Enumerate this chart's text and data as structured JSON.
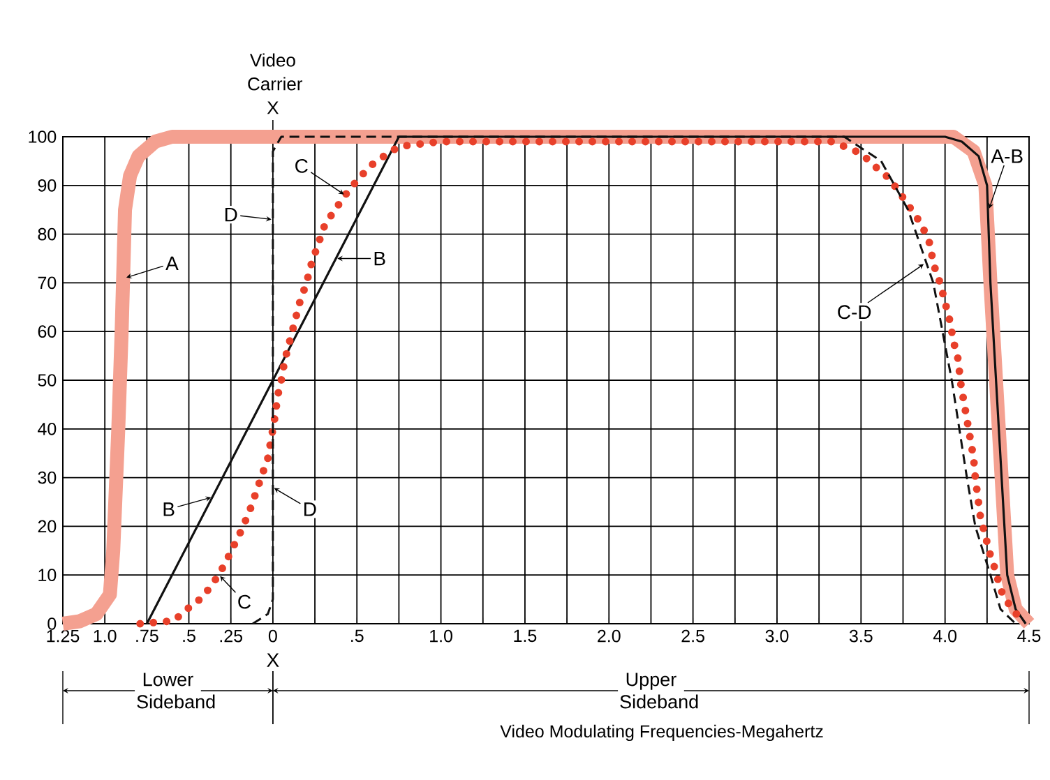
{
  "chart_data": {
    "type": "line",
    "xlabel": "Video Modulating Frequencies-Megahertz",
    "xlim": [
      -1.25,
      4.5
    ],
    "ylim": [
      0,
      100
    ],
    "xticks": [
      {
        "value": -1.25,
        "label": "1.25"
      },
      {
        "value": -1.0,
        "label": "1.0"
      },
      {
        "value": -0.75,
        "label": ".75"
      },
      {
        "value": -0.5,
        "label": ".5"
      },
      {
        "value": -0.25,
        "label": ".25"
      },
      0,
      {
        "value": 0.25,
        "label": null
      },
      {
        "value": 0.5,
        "label": ".5"
      },
      {
        "value": 0.75,
        "label": null
      },
      {
        "value": 1.0,
        "label": "1.0"
      },
      {
        "value": 1.25,
        "label": null
      },
      {
        "value": 1.5,
        "label": "1.5"
      },
      {
        "value": 1.75,
        "label": null
      },
      {
        "value": 2.0,
        "label": "2.0"
      },
      {
        "value": 2.25,
        "label": null
      },
      {
        "value": 2.5,
        "label": "2.5"
      },
      {
        "value": 2.75,
        "label": null
      },
      {
        "value": 3.0,
        "label": "3.0"
      },
      {
        "value": 3.25,
        "label": null
      },
      {
        "value": 3.5,
        "label": "3.5"
      },
      {
        "value": 3.75,
        "label": null
      },
      {
        "value": 4.0,
        "label": "4.0"
      },
      {
        "value": 4.25,
        "label": null
      },
      {
        "value": 4.5,
        "label": "4.5"
      }
    ],
    "yticks": [
      0,
      10,
      20,
      30,
      40,
      50,
      60,
      70,
      80,
      90,
      100
    ],
    "grid": true,
    "series": [
      {
        "color": "#f4a090",
        "line_style": "solid",
        "x": [
          -1.25,
          -1.15,
          -1.05,
          -0.97,
          -0.95,
          -0.92,
          -0.9,
          -0.88,
          -0.85,
          -0.8,
          -0.7,
          -0.6,
          4.05,
          4.17,
          4.24,
          4.27,
          4.32,
          4.37,
          4.42,
          4.5
        ],
        "values": [
          0,
          0.5,
          2,
          6,
          15,
          40,
          60,
          85,
          92,
          96,
          99,
          100,
          100,
          97,
          90,
          70,
          40,
          10,
          3,
          0
        ]
      },
      {
        "color": "#111111",
        "line_style": "solid",
        "x": [
          -0.75,
          0.75,
          4.0,
          4.1,
          4.2,
          4.25,
          4.27,
          4.32,
          4.37,
          4.42,
          4.48
        ],
        "values": [
          0,
          100,
          100,
          99,
          96,
          90,
          70,
          40,
          10,
          3,
          0
        ]
      },
      {
        "color": "#e8402a",
        "line_style": "dotted",
        "x": [
          -0.79,
          -0.59,
          -0.51,
          -0.42,
          -0.35,
          -0.29,
          -0.24,
          -0.19,
          -0.14,
          -0.1,
          -0.07,
          -0.03,
          -0.01,
          0.01,
          0.03,
          0.05,
          0.07,
          0.1,
          0.13,
          0.16,
          0.2,
          0.23,
          0.27,
          0.31,
          0.37,
          0.43,
          0.5,
          0.58,
          0.66,
          0.75,
          1.0,
          2.0,
          3.0,
          3.33,
          3.5,
          3.58,
          3.67,
          3.74,
          3.8,
          3.86,
          3.91,
          3.93,
          3.97,
          4.0,
          4.03,
          4.05,
          4.08,
          4.09,
          4.11,
          4.13,
          4.15,
          4.17,
          4.18,
          4.21,
          4.24,
          4.27,
          4.3,
          4.33,
          4.39,
          4.46
        ],
        "values": [
          0,
          0.6,
          3,
          5.4,
          8.6,
          12,
          15.5,
          19,
          23,
          27,
          30,
          34,
          38,
          42,
          47,
          50,
          54,
          58,
          62,
          66,
          70,
          74,
          78,
          82,
          85,
          88,
          91,
          94,
          96,
          98,
          99,
          99,
          99,
          99,
          96.6,
          94,
          91.4,
          88,
          85,
          82,
          78,
          74,
          70,
          66,
          62,
          58,
          54,
          50,
          46,
          42,
          38,
          34,
          30,
          22,
          18,
          14,
          11,
          7,
          3.4,
          0.6
        ]
      },
      {
        "color": "#111111",
        "line_style": "dashed",
        "x": [
          -0.12,
          -0.03,
          0,
          0,
          0.05,
          3.4,
          3.62,
          3.78,
          3.93,
          4.04,
          4.13,
          4.18,
          4.27,
          4.33,
          4.42
        ],
        "values": [
          0,
          2,
          5,
          97,
          100,
          100,
          95,
          85,
          70,
          50,
          30,
          20,
          10,
          3,
          0
        ]
      }
    ],
    "ref_lines": [
      {
        "axis": "x",
        "value": 0,
        "label": "Video Carrier X"
      }
    ],
    "annotations": [
      {
        "text": "A",
        "x": -0.88,
        "y": 71
      },
      {
        "text": "B",
        "x": 0.375,
        "y": 75
      },
      {
        "text": "C",
        "x": 0.43,
        "y": 88
      },
      {
        "text": "D",
        "x": 0,
        "y": 83
      },
      {
        "text": "B",
        "x": -0.36,
        "y": 26
      },
      {
        "text": "C",
        "x": -0.32,
        "y": 10
      },
      {
        "text": "D",
        "x": 0,
        "y": 28
      },
      {
        "text": "A-B",
        "x": 4.26,
        "y": 85
      },
      {
        "text": "C-D",
        "x": 3.88,
        "y": 74
      },
      "X",
      "Lower Sideband",
      "Upper Sideband"
    ]
  }
}
